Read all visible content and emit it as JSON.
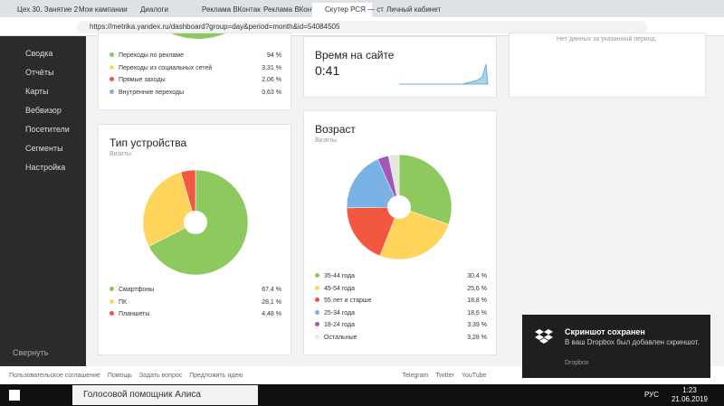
{
  "browser": {
    "tabs": [
      "Цех 30. Занятие 2",
      "Мои кампании",
      "Диалоги",
      "Реклама ВКонтак",
      "Реклама ВКонтак",
      "Скутер РСЯ — ст",
      "Личный кабинет"
    ],
    "url": "https://metrika.yandex.ru/dashboard?group=day&period=month&id=54084505"
  },
  "sidebar": {
    "items": [
      "Сводка",
      "Отчёты",
      "Карты",
      "Вебвизор",
      "Посетители",
      "Сегменты",
      "Настройка"
    ],
    "collapse": "Свернуть"
  },
  "sources": {
    "items": [
      {
        "label": "Переходы по рекламе",
        "value": 94,
        "value_label": "94 %",
        "color": "#8dc95f"
      },
      {
        "label": "Переходы из социальных сетей",
        "value": 3.31,
        "value_label": "3,31 %",
        "color": "#ffd45a"
      },
      {
        "label": "Прямые заходы",
        "value": 2.06,
        "value_label": "2,06 %",
        "color": "#f2573f"
      },
      {
        "label": "Внутренние переходы",
        "value": 0.63,
        "value_label": "0,63 %",
        "color": "#79b3e6"
      }
    ]
  },
  "time": {
    "title": "Время на сайте",
    "value": "0:41"
  },
  "nodata": "Нет данных за указанный период.",
  "device": {
    "title": "Тип устройства",
    "subtitle": "Визиты",
    "items": [
      {
        "label": "Смартфоны",
        "value": 67.4,
        "value_label": "67,4 %",
        "color": "#8dc95f"
      },
      {
        "label": "ПК",
        "value": 28.1,
        "value_label": "28,1 %",
        "color": "#ffd45a"
      },
      {
        "label": "Планшеты",
        "value": 4.48,
        "value_label": "4,48 %",
        "color": "#f2573f"
      }
    ]
  },
  "age": {
    "title": "Возраст",
    "subtitle": "Визиты",
    "items": [
      {
        "label": "35-44 года",
        "value": 30.4,
        "value_label": "30,4 %",
        "color": "#8dc95f"
      },
      {
        "label": "45-54 года",
        "value": 25.6,
        "value_label": "25,6 %",
        "color": "#ffd45a"
      },
      {
        "label": "55 лет и старше",
        "value": 18.8,
        "value_label": "18,8 %",
        "color": "#f2573f"
      },
      {
        "label": "25-34 года",
        "value": 18.6,
        "value_label": "18,6 %",
        "color": "#79b3e6"
      },
      {
        "label": "18-24 года",
        "value": 3.39,
        "value_label": "3,39 %",
        "color": "#a557b9"
      },
      {
        "label": "Остальные",
        "value": 3.28,
        "value_label": "3,28 %",
        "color": "#e6e6e0"
      }
    ]
  },
  "footer": {
    "left": [
      "Пользовательское соглашение",
      "Помощь",
      "Задать вопрос",
      "Предложить идею"
    ],
    "right": [
      "Telegram",
      "Twitter",
      "YouTube"
    ]
  },
  "notification": {
    "title": "Скриншот сохранен",
    "text": "В ваш Dropbox был добавлен скриншот.",
    "source": "Dropbox"
  },
  "taskbar": {
    "search": "Голосовой помощник Алиса",
    "lang": "РУС",
    "time": "1:23",
    "date": "21.06.2019"
  }
}
